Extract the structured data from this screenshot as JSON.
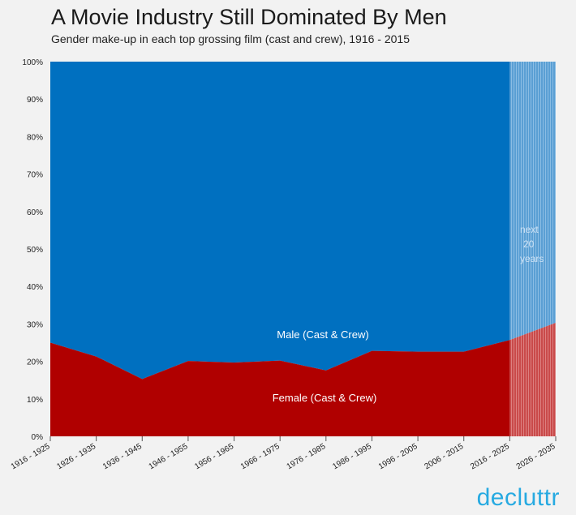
{
  "title": "A Movie Industry Still Dominated By Men",
  "subtitle": "Gender make-up in each top grossing film (cast and crew), 1916 - 2015",
  "brand": "decluttr",
  "chart_data": {
    "type": "area",
    "stacked": "percent",
    "categories": [
      "1916 - 1925",
      "1926 - 1935",
      "1936 - 1945",
      "1946 - 1955",
      "1956 - 1965",
      "1966 - 1975",
      "1976 - 1985",
      "1986 - 1995",
      "1996 - 2005",
      "2006 - 2015",
      "2016 - 2025",
      "2026 - 2035"
    ],
    "series": [
      {
        "name": "Female (Cast & Crew)",
        "color": "#b00000",
        "values": [
          25,
          21.3,
          15.3,
          20.1,
          19.7,
          20.2,
          17.6,
          22.8,
          22.6,
          22.6,
          25.7,
          30.3
        ]
      },
      {
        "name": "Male (Cast & Crew)",
        "color": "#0070c0",
        "values": [
          75,
          78.7,
          84.7,
          79.9,
          80.3,
          79.8,
          82.4,
          77.2,
          77.4,
          77.4,
          74.3,
          69.7
        ]
      }
    ],
    "projection": {
      "start_category": "2016 - 2025",
      "label": [
        "next",
        "20",
        "years"
      ]
    },
    "y_ticks": [
      "0%",
      "10%",
      "20%",
      "30%",
      "40%",
      "50%",
      "60%",
      "70%",
      "80%",
      "90%",
      "100%"
    ],
    "ylim": [
      0,
      100
    ],
    "grid": false
  }
}
